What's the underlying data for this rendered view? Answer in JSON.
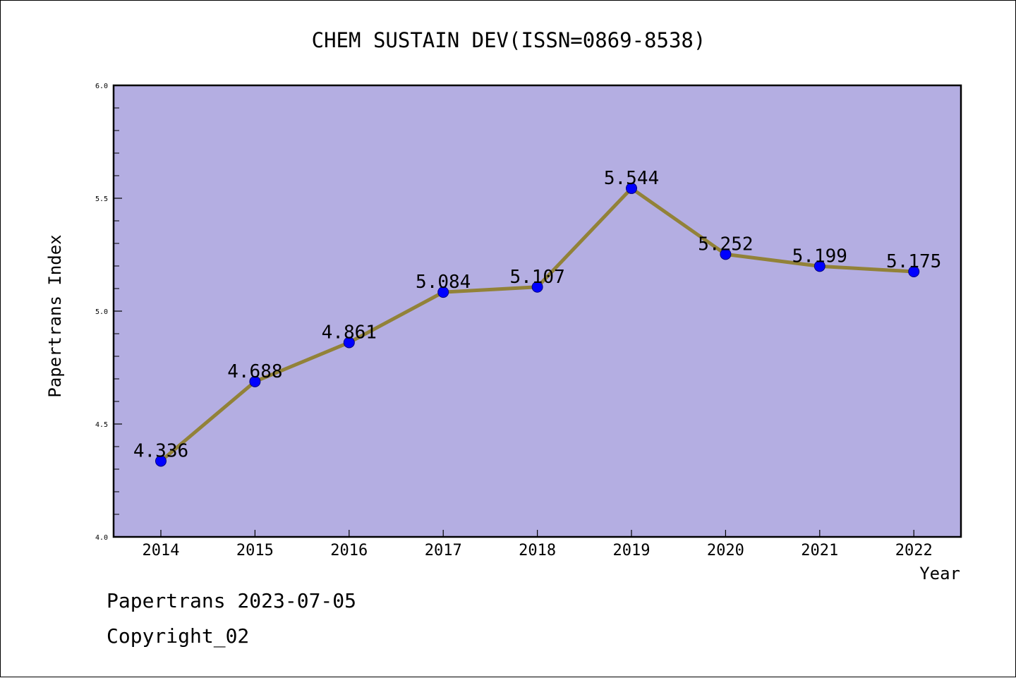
{
  "chart_data": {
    "type": "line",
    "title": "CHEM SUSTAIN DEV(ISSN=0869-8538)",
    "xlabel": "Year",
    "ylabel": "Papertrans Index",
    "categories": [
      "2014",
      "2015",
      "2016",
      "2017",
      "2018",
      "2019",
      "2020",
      "2021",
      "2022"
    ],
    "values": [
      4.336,
      4.688,
      4.861,
      5.084,
      5.107,
      5.544,
      5.252,
      5.199,
      5.175
    ],
    "value_labels": [
      "4.336",
      "4.688",
      "4.861",
      "5.084",
      "5.107",
      "5.544",
      "5.252",
      "5.199",
      "5.175"
    ],
    "ylim": [
      4.0,
      6.0
    ],
    "yticks": [
      "4.0",
      "4.5",
      "5.0",
      "5.5",
      "6.0"
    ],
    "grid": false,
    "colors": {
      "plot_background": "#b4aee2",
      "line": "#928238",
      "marker": "#0000ff"
    }
  },
  "footer": {
    "line1": "Papertrans 2023-07-05",
    "line2": "Copyright_02"
  }
}
